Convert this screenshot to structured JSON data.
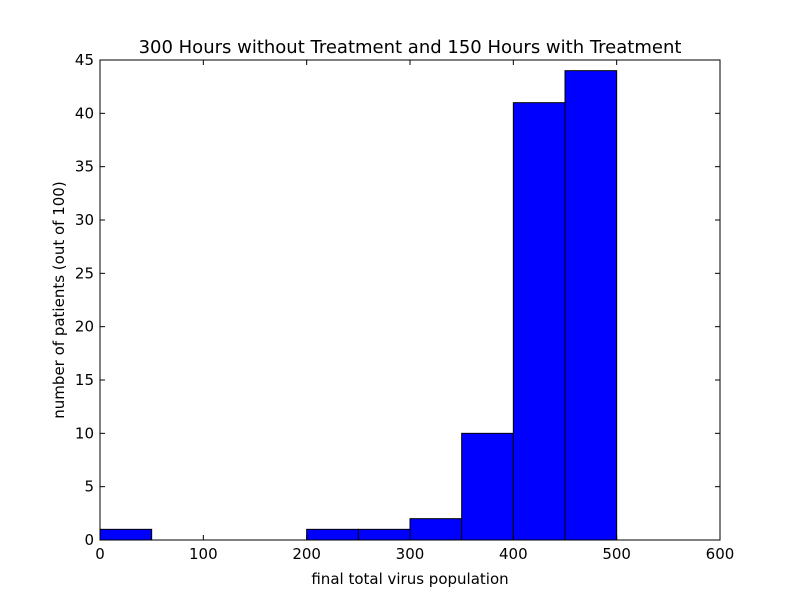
{
  "chart_data": {
    "type": "bar",
    "title": "300 Hours without Treatment and 150 Hours with Treatment",
    "xlabel": "final total virus population",
    "ylabel": "number of patients (out of 100)",
    "xlim": [
      0,
      600
    ],
    "ylim": [
      0,
      45
    ],
    "xticks": [
      "0",
      "100",
      "200",
      "300",
      "400",
      "500",
      "600"
    ],
    "yticks": [
      "0",
      "5",
      "10",
      "15",
      "20",
      "25",
      "30",
      "35",
      "40",
      "45"
    ],
    "grid": false,
    "bar_color": "#0000ff",
    "bins": [
      {
        "x0": 0,
        "x1": 50,
        "value": 1
      },
      {
        "x0": 200,
        "x1": 250,
        "value": 1
      },
      {
        "x0": 250,
        "x1": 300,
        "value": 1
      },
      {
        "x0": 300,
        "x1": 350,
        "value": 2
      },
      {
        "x0": 350,
        "x1": 400,
        "value": 10
      },
      {
        "x0": 400,
        "x1": 450,
        "value": 41
      },
      {
        "x0": 450,
        "x1": 500,
        "value": 44
      }
    ]
  }
}
